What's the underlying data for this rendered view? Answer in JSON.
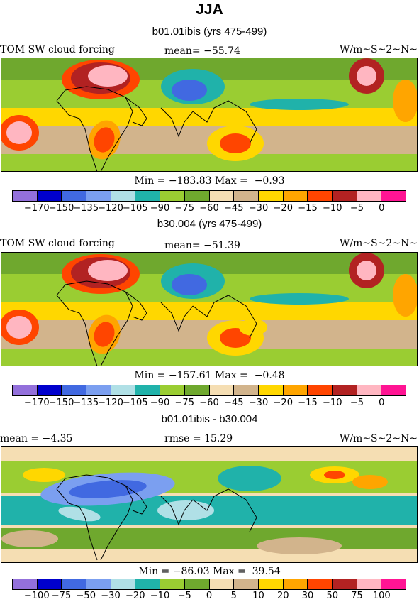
{
  "title": "JJA",
  "palette": [
    "#9370db",
    "#0000cd",
    "#4169e1",
    "#7b9ff0",
    "#b0e0e6",
    "#20b2aa",
    "#9acd32",
    "#6fa82e",
    "#f5deb3",
    "#d2b48c",
    "#ffd700",
    "#ffa500",
    "#ff4500",
    "#b22222",
    "#ffb6c1",
    "#ff1493"
  ],
  "panels": [
    {
      "title": "b01.01ibis (yrs 475-499)",
      "left_label": "TOM SW cloud forcing",
      "mid_label": "mean=  −55.74",
      "right_label": "W/m~S~2~N~",
      "minmax": "Min = −183.83 Max =  −0.93",
      "bins": [
        "−170",
        "−150",
        "−135",
        "−120",
        "−105",
        "−90",
        "−75",
        "−60",
        "−45",
        "−30",
        "−20",
        "−15",
        "−10",
        "−5",
        "0"
      ]
    },
    {
      "title": "b30.004 (yrs 475-499)",
      "left_label": "TOM SW cloud forcing",
      "mid_label": "mean=  −51.39",
      "right_label": "W/m~S~2~N~",
      "minmax": "Min = −157.61 Max =  −0.48",
      "bins": [
        "−170",
        "−150",
        "−135",
        "−120",
        "−105",
        "−90",
        "−75",
        "−60",
        "−45",
        "−30",
        "−20",
        "−15",
        "−10",
        "−5",
        "0"
      ]
    },
    {
      "title": "b01.01ibis - b30.004",
      "left_label": "mean =   −4.35",
      "mid_label": "rmse =  15.29",
      "right_label": "W/m~S~2~N~",
      "minmax": "Min = −86.03 Max =  39.54",
      "bins": [
        "−100",
        "−75",
        "−50",
        "−30",
        "−20",
        "−10",
        "−5",
        "0",
        "5",
        "10",
        "20",
        "30",
        "50",
        "75",
        "100"
      ]
    }
  ],
  "chart_data": [
    {
      "type": "heatmap",
      "title": "b01.01ibis (yrs 475-499)",
      "variable": "TOM SW cloud forcing",
      "mean": -55.74,
      "min": -183.83,
      "max": -0.93,
      "units": "W/m~S~2~N~",
      "contour_levels": [
        -170,
        -150,
        -135,
        -120,
        -105,
        -90,
        -75,
        -60,
        -45,
        -30,
        -20,
        -15,
        -10,
        -5,
        0
      ]
    },
    {
      "type": "heatmap",
      "title": "b30.004 (yrs 475-499)",
      "variable": "TOM SW cloud forcing",
      "mean": -51.39,
      "min": -157.61,
      "max": -0.48,
      "units": "W/m~S~2~N~",
      "contour_levels": [
        -170,
        -150,
        -135,
        -120,
        -105,
        -90,
        -75,
        -60,
        -45,
        -30,
        -20,
        -15,
        -10,
        -5,
        0
      ]
    },
    {
      "type": "heatmap",
      "title": "b01.01ibis - b30.004",
      "mean": -4.35,
      "rmse": 15.29,
      "min": -86.03,
      "max": 39.54,
      "units": "W/m~S~2~N~",
      "contour_levels": [
        -100,
        -75,
        -50,
        -30,
        -20,
        -10,
        -5,
        0,
        5,
        10,
        20,
        30,
        50,
        75,
        100
      ]
    }
  ]
}
